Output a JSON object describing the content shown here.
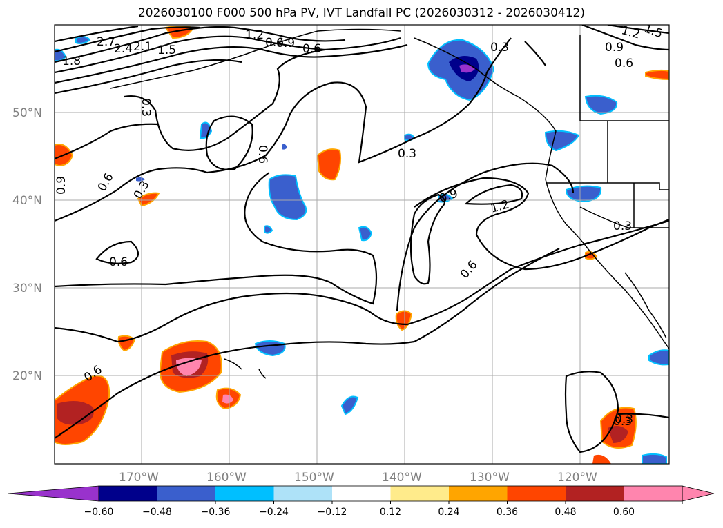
{
  "title": "2026030100 F000 500 hPa PV, IVT Landfall PC (2026030312 - 2026030412)",
  "map": {
    "lat_labels": [
      "50°N",
      "40°N",
      "30°N",
      "20°N"
    ],
    "lon_labels": [
      "170°W",
      "160°W",
      "150°W",
      "140°W",
      "130°W",
      "120°W"
    ],
    "contour_labels": [
      "2.7",
      "2.4",
      "2.1",
      "1.8",
      "1.5",
      "1.2",
      "0.9",
      "0.6",
      "0.3",
      "0.6",
      "0.3",
      "0.6",
      "0.9",
      "0.6",
      "0.3",
      "0.6",
      "0.3",
      "0.9",
      "1.2",
      "0.6",
      "0.3",
      "0.6",
      "0.3",
      "0.9",
      "0.6",
      "1.2",
      "1.5",
      "0.3"
    ]
  },
  "colorbar": {
    "ticks": [
      "−0.60",
      "−0.48",
      "−0.36",
      "−0.24",
      "−0.12",
      "0.12",
      "0.24",
      "0.36",
      "0.48",
      "0.60"
    ],
    "colors": [
      "#9932CC",
      "#00008B",
      "#3A5FCD",
      "#00BFFF",
      "#AEE2F8",
      "#FFFFFF",
      "#FFEB8B",
      "#FFA500",
      "#FF4500",
      "#B22222",
      "#FF85AE",
      "#FF85AE"
    ],
    "extend_low": "#9932CC",
    "extend_high": "#FF85AE"
  }
}
